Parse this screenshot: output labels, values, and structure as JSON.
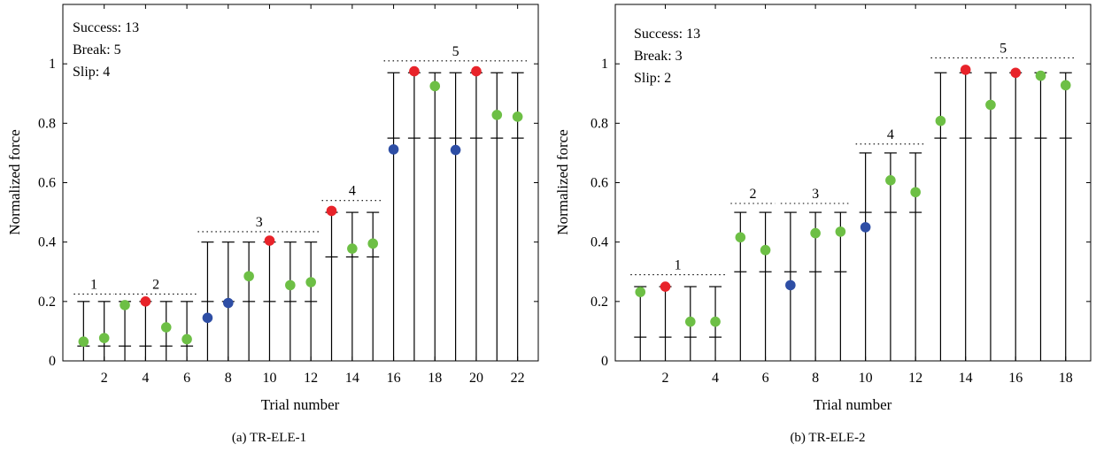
{
  "chart_data": [
    {
      "type": "scatter",
      "caption": "(a)  TR-ELE-1",
      "xlabel": "Trial number",
      "ylabel": "Normalized force",
      "xlim": [
        0,
        23
      ],
      "ylim": [
        0,
        1.2
      ],
      "xticks": [
        2,
        4,
        6,
        8,
        10,
        12,
        14,
        16,
        18,
        20,
        22
      ],
      "yticks": [
        0,
        0.2,
        0.4,
        0.6,
        0.8,
        1
      ],
      "grid": false,
      "stats": [
        "Success: 13",
        "Break: 5",
        "Slip: 4"
      ],
      "legend_colors": {
        "success": "#6dbf45",
        "break": "#e8232a",
        "slip": "#2e4ea5"
      },
      "groups": [
        {
          "label": "1",
          "x_from": 1,
          "x_to": 2,
          "level": 0.225
        },
        {
          "label": "2",
          "x_from": 3,
          "x_to": 6,
          "level": 0.225
        },
        {
          "label": "3",
          "x_from": 7,
          "x_to": 12,
          "level": 0.435
        },
        {
          "label": "4",
          "x_from": 13,
          "x_to": 15,
          "level": 0.54
        },
        {
          "label": "5",
          "x_from": 16,
          "x_to": 22,
          "level": 1.01
        }
      ],
      "trials": [
        {
          "x": 1,
          "y": 0.065,
          "status": "success",
          "lower": 0.05,
          "upper": 0.2
        },
        {
          "x": 2,
          "y": 0.077,
          "status": "success",
          "lower": 0.05,
          "upper": 0.2
        },
        {
          "x": 3,
          "y": 0.188,
          "status": "success",
          "lower": 0.05,
          "upper": 0.2
        },
        {
          "x": 4,
          "y": 0.2,
          "status": "break",
          "lower": 0.05,
          "upper": 0.2
        },
        {
          "x": 5,
          "y": 0.113,
          "status": "success",
          "lower": 0.05,
          "upper": 0.2
        },
        {
          "x": 6,
          "y": 0.073,
          "status": "success",
          "lower": 0.05,
          "upper": 0.2
        },
        {
          "x": 7,
          "y": 0.145,
          "status": "slip",
          "lower": 0.2,
          "upper": 0.4
        },
        {
          "x": 8,
          "y": 0.195,
          "status": "slip",
          "lower": 0.2,
          "upper": 0.4
        },
        {
          "x": 9,
          "y": 0.285,
          "status": "success",
          "lower": 0.2,
          "upper": 0.4
        },
        {
          "x": 10,
          "y": 0.405,
          "status": "break",
          "lower": 0.2,
          "upper": 0.4
        },
        {
          "x": 11,
          "y": 0.255,
          "status": "success",
          "lower": 0.2,
          "upper": 0.4
        },
        {
          "x": 12,
          "y": 0.265,
          "status": "success",
          "lower": 0.2,
          "upper": 0.4
        },
        {
          "x": 13,
          "y": 0.505,
          "status": "break",
          "lower": 0.35,
          "upper": 0.5
        },
        {
          "x": 14,
          "y": 0.378,
          "status": "success",
          "lower": 0.35,
          "upper": 0.5
        },
        {
          "x": 15,
          "y": 0.395,
          "status": "success",
          "lower": 0.35,
          "upper": 0.5
        },
        {
          "x": 16,
          "y": 0.712,
          "status": "slip",
          "lower": 0.75,
          "upper": 0.97
        },
        {
          "x": 17,
          "y": 0.975,
          "status": "break",
          "lower": 0.75,
          "upper": 0.97
        },
        {
          "x": 18,
          "y": 0.925,
          "status": "success",
          "lower": 0.75,
          "upper": 0.97
        },
        {
          "x": 19,
          "y": 0.71,
          "status": "slip",
          "lower": 0.75,
          "upper": 0.97
        },
        {
          "x": 20,
          "y": 0.975,
          "status": "break",
          "lower": 0.75,
          "upper": 0.97
        },
        {
          "x": 21,
          "y": 0.828,
          "status": "success",
          "lower": 0.75,
          "upper": 0.97
        },
        {
          "x": 22,
          "y": 0.822,
          "status": "success",
          "lower": 0.75,
          "upper": 0.97
        }
      ]
    },
    {
      "type": "scatter",
      "caption": "(b)  TR-ELE-2",
      "xlabel": "Trial number",
      "ylabel": "Normalized force",
      "xlim": [
        0,
        19
      ],
      "ylim": [
        0,
        1.2
      ],
      "xticks": [
        2,
        4,
        6,
        8,
        10,
        12,
        14,
        16,
        18
      ],
      "yticks": [
        0,
        0.2,
        0.4,
        0.6,
        0.8,
        1
      ],
      "grid": false,
      "stats": [
        "Success: 13",
        "Break: 3",
        "Slip: 2"
      ],
      "legend_colors": {
        "success": "#6dbf45",
        "break": "#e8232a",
        "slip": "#2e4ea5"
      },
      "groups": [
        {
          "label": "1",
          "x_from": 1,
          "x_to": 4,
          "level": 0.29
        },
        {
          "label": "2",
          "x_from": 5,
          "x_to": 6,
          "level": 0.53
        },
        {
          "label": "3",
          "x_from": 7,
          "x_to": 9,
          "level": 0.53
        },
        {
          "label": "4",
          "x_from": 10,
          "x_to": 12,
          "level": 0.73
        },
        {
          "label": "5",
          "x_from": 13,
          "x_to": 18,
          "level": 1.02
        }
      ],
      "trials": [
        {
          "x": 1,
          "y": 0.232,
          "status": "success",
          "lower": 0.08,
          "upper": 0.25
        },
        {
          "x": 2,
          "y": 0.25,
          "status": "break",
          "lower": 0.08,
          "upper": 0.25
        },
        {
          "x": 3,
          "y": 0.132,
          "status": "success",
          "lower": 0.08,
          "upper": 0.25
        },
        {
          "x": 4,
          "y": 0.132,
          "status": "success",
          "lower": 0.08,
          "upper": 0.25
        },
        {
          "x": 5,
          "y": 0.416,
          "status": "success",
          "lower": 0.3,
          "upper": 0.5
        },
        {
          "x": 6,
          "y": 0.373,
          "status": "success",
          "lower": 0.3,
          "upper": 0.5
        },
        {
          "x": 7,
          "y": 0.255,
          "status": "slip",
          "lower": 0.3,
          "upper": 0.5
        },
        {
          "x": 8,
          "y": 0.43,
          "status": "success",
          "lower": 0.3,
          "upper": 0.5
        },
        {
          "x": 9,
          "y": 0.435,
          "status": "success",
          "lower": 0.3,
          "upper": 0.5
        },
        {
          "x": 10,
          "y": 0.45,
          "status": "slip",
          "lower": 0.5,
          "upper": 0.7
        },
        {
          "x": 11,
          "y": 0.608,
          "status": "success",
          "lower": 0.5,
          "upper": 0.7
        },
        {
          "x": 12,
          "y": 0.568,
          "status": "success",
          "lower": 0.5,
          "upper": 0.7
        },
        {
          "x": 13,
          "y": 0.808,
          "status": "success",
          "lower": 0.75,
          "upper": 0.97
        },
        {
          "x": 14,
          "y": 0.98,
          "status": "break",
          "lower": 0.75,
          "upper": 0.97
        },
        {
          "x": 15,
          "y": 0.862,
          "status": "success",
          "lower": 0.75,
          "upper": 0.97
        },
        {
          "x": 16,
          "y": 0.97,
          "status": "break",
          "lower": 0.75,
          "upper": 0.97
        },
        {
          "x": 17,
          "y": 0.96,
          "status": "success",
          "lower": 0.75,
          "upper": 0.97
        },
        {
          "x": 18,
          "y": 0.928,
          "status": "success",
          "lower": 0.75,
          "upper": 0.97
        }
      ]
    }
  ]
}
